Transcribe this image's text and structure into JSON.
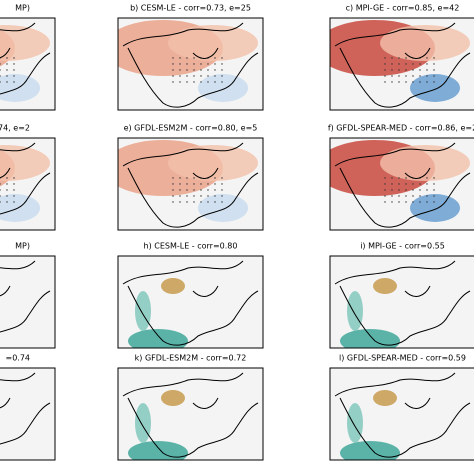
{
  "panels": [
    {
      "title": "MP)"
    },
    {
      "title": "b) CESM-LE - corr=0.73, e=25"
    },
    {
      "title": "c) MPI-GE - corr=0.85, e=42"
    },
    {
      "title": ".74, e=2"
    },
    {
      "title": "e) GFDL-ESM2M - corr=0.80, e=5"
    },
    {
      "title": "f) GFDL-SPEAR-MED - corr=0.86, e=2"
    },
    {
      "title": "MP)"
    },
    {
      "title": "h) CESM-LE - corr=0.80"
    },
    {
      "title": "i) MPI-GE - corr=0.55"
    },
    {
      "title": "=0.74"
    },
    {
      "title": "k) GFDL-ESM2M - corr=0.72"
    },
    {
      "title": "l) GFDL-SPEAR-MED - corr=0.59"
    }
  ]
}
